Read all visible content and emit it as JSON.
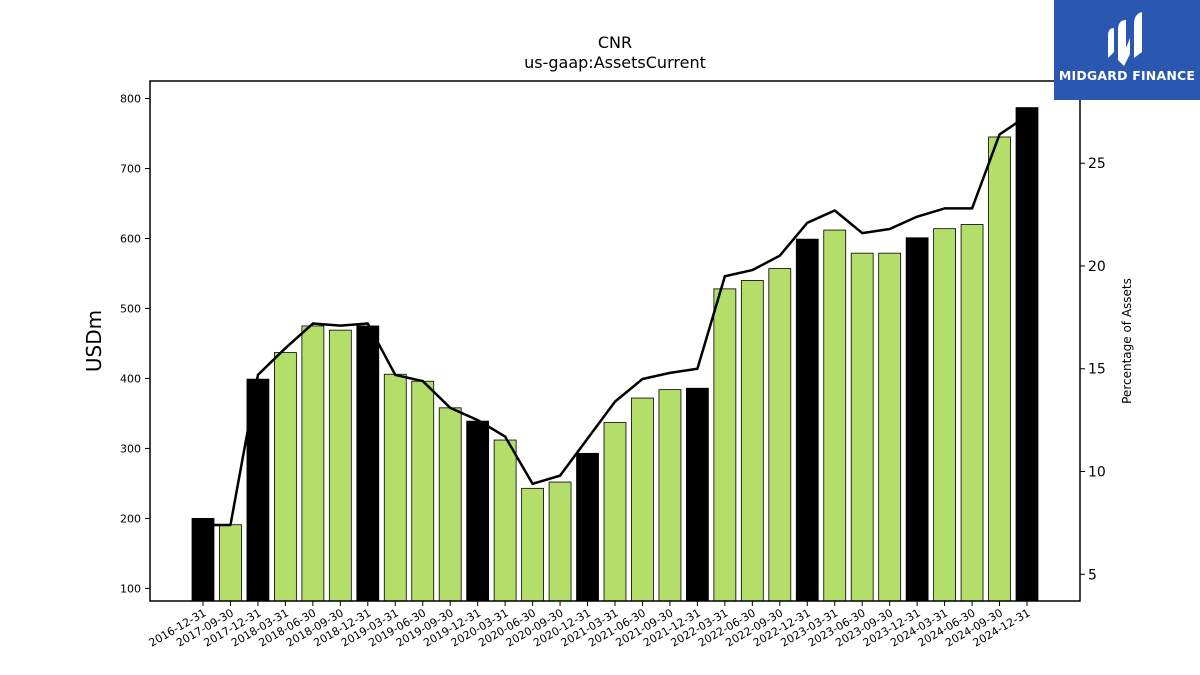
{
  "chart_data": {
    "type": "bar",
    "title": "CNR",
    "subtitle": "us-gaap:AssetsCurrent",
    "ylabel": "USDm",
    "y2label": "Percentage of Assets",
    "ylim": [
      82,
      825
    ],
    "y2lim": [
      3.7,
      29.0
    ],
    "yticks": [
      100,
      200,
      300,
      400,
      500,
      600,
      700,
      800
    ],
    "y2ticks": [
      5,
      10,
      15,
      20,
      25
    ],
    "categories": [
      "2016-12-31",
      "2017-09-30",
      "2017-12-31",
      "2018-03-31",
      "2018-06-30",
      "2018-09-30",
      "2018-12-31",
      "2019-03-31",
      "2019-06-30",
      "2019-09-30",
      "2019-12-31",
      "2020-03-31",
      "2020-06-30",
      "2020-09-30",
      "2020-12-31",
      "2021-03-31",
      "2021-06-30",
      "2021-09-30",
      "2021-12-31",
      "2022-03-31",
      "2022-06-30",
      "2022-09-30",
      "2022-12-31",
      "2023-03-31",
      "2023-06-30",
      "2023-09-30",
      "2023-12-31",
      "2024-03-31",
      "2024-06-30",
      "2024-09-30",
      "2024-12-31"
    ],
    "series": [
      {
        "values": [
          200,
          191,
          399,
          437,
          475,
          469,
          475,
          406,
          396,
          358,
          339,
          312,
          243,
          252,
          293,
          337,
          372,
          384,
          386,
          528,
          540,
          557,
          599,
          612,
          579,
          579,
          601,
          614,
          620,
          745,
          787
        ],
        "year_end": [
          true,
          false,
          true,
          false,
          false,
          false,
          true,
          false,
          false,
          false,
          true,
          false,
          false,
          false,
          true,
          false,
          false,
          false,
          true,
          false,
          false,
          false,
          true,
          false,
          false,
          false,
          true,
          false,
          false,
          false,
          true
        ]
      },
      {
        "axis": "right",
        "values": [
          7.4,
          7.4,
          14.7,
          16.0,
          17.2,
          17.1,
          17.2,
          14.7,
          14.4,
          13.1,
          12.5,
          11.7,
          9.4,
          9.8,
          11.6,
          13.4,
          14.5,
          14.8,
          15.0,
          19.5,
          19.8,
          20.5,
          22.1,
          22.7,
          21.6,
          21.8,
          22.4,
          22.8,
          22.8,
          26.4,
          27.3
        ]
      }
    ],
    "colors": {
      "year_end_bar": "#000000",
      "quarter_bar": "#b3de69",
      "line": "#000000"
    }
  },
  "logo": {
    "text": "MIDGARD FINANCE",
    "bg": "#2a57b0"
  }
}
